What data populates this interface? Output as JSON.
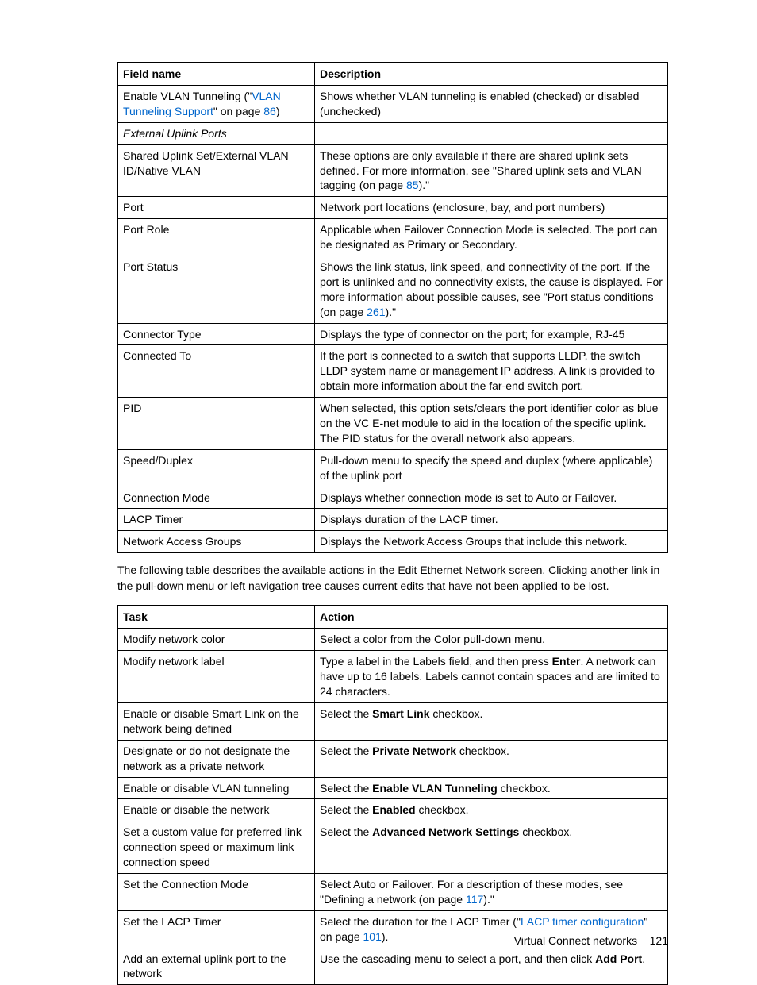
{
  "table1": {
    "headers": {
      "col1": "Field name",
      "col2": "Description"
    },
    "rows": [
      {
        "field_html": "Enable VLAN Tunneling (\"<span class='link'>VLAN Tunneling Support</span>\" on page <span class='link'>86</span>)",
        "desc_html": "Shows whether VLAN tunneling is enabled (checked) or disabled (unchecked)"
      },
      {
        "field_html": "<span class='italic'>External Uplink Ports</span>",
        "desc_html": ""
      },
      {
        "field_html": "Shared Uplink Set/External VLAN ID/Native VLAN",
        "desc_html": "These options are only available if there are shared uplink sets defined. For more information, see \"Shared uplink sets and VLAN tagging (on page <span class='link'>85</span>).\""
      },
      {
        "field_html": "Port",
        "desc_html": "Network port locations (enclosure, bay, and port numbers)"
      },
      {
        "field_html": "Port Role",
        "desc_html": "Applicable when Failover Connection Mode is selected. The port can be designated as Primary or Secondary."
      },
      {
        "field_html": "Port Status",
        "desc_html": "Shows the link status, link speed, and connectivity of the port. If the port is unlinked and no connectivity exists, the cause is displayed. For more information about possible causes, see \"Port status conditions (on page <span class='link'>261</span>).\""
      },
      {
        "field_html": "Connector Type",
        "desc_html": "Displays the type of connector on the port; for example, RJ-45"
      },
      {
        "field_html": "Connected To",
        "desc_html": "If the port is connected to a switch that supports LLDP, the switch LLDP system name or management IP address. A link is provided to obtain more information about the far-end switch port."
      },
      {
        "field_html": "PID",
        "desc_html": "When selected, this option sets/clears the port identifier color as blue on the VC E-net module to aid in the location of the specific uplink. The PID status for the overall network also appears."
      },
      {
        "field_html": "Speed/Duplex",
        "desc_html": "Pull-down menu to specify the speed and duplex (where applicable) of the uplink port"
      },
      {
        "field_html": "Connection Mode",
        "desc_html": "Displays whether connection mode is set to Auto or Failover."
      },
      {
        "field_html": "LACP Timer",
        "desc_html": "Displays duration of the LACP timer."
      },
      {
        "field_html": "Network Access Groups",
        "desc_html": "Displays the Network Access Groups that include this network."
      }
    ]
  },
  "paragraph": "The following table describes the available actions in the Edit Ethernet Network screen. Clicking another link in the pull-down menu or left navigation tree causes current edits that have not been applied to be lost.",
  "table2": {
    "headers": {
      "col1": "Task",
      "col2": "Action"
    },
    "rows": [
      {
        "task_html": "Modify network color",
        "action_html": "Select a color from the Color pull-down menu."
      },
      {
        "task_html": "Modify network label",
        "action_html": "Type a label in the Labels field, and then press <b>Enter</b>. A network can have up to 16 labels. Labels cannot contain spaces and are limited to 24 characters."
      },
      {
        "task_html": "Enable or disable Smart Link on the network being defined",
        "action_html": "Select the <b>Smart Link</b> checkbox."
      },
      {
        "task_html": "Designate or do not designate the network as a private network",
        "action_html": "Select the <b>Private Network</b> checkbox."
      },
      {
        "task_html": "Enable or disable VLAN tunneling",
        "action_html": "Select the <b>Enable VLAN Tunneling</b> checkbox."
      },
      {
        "task_html": "Enable or disable the network",
        "action_html": "Select the <b>Enabled</b> checkbox."
      },
      {
        "task_html": "Set a custom value for preferred link connection speed or maximum link connection speed",
        "action_html": "Select the <b>Advanced Network Settings</b> checkbox."
      },
      {
        "task_html": "Set the Connection Mode",
        "action_html": "Select Auto or Failover. For a description of these modes, see \"Defining a network (on page <span class='link'>117</span>).\""
      },
      {
        "task_html": "Set the LACP Timer",
        "action_html": "Select the duration for the LACP Timer (\"<span class='link'>LACP timer configuration</span>\" on page <span class='link'>101</span>)."
      },
      {
        "task_html": "Add an external uplink port to the network",
        "action_html": "Use the cascading menu to select a port, and then click <b>Add Port</b>."
      }
    ]
  },
  "footer": {
    "text": "Virtual Connect networks",
    "page": "121"
  }
}
